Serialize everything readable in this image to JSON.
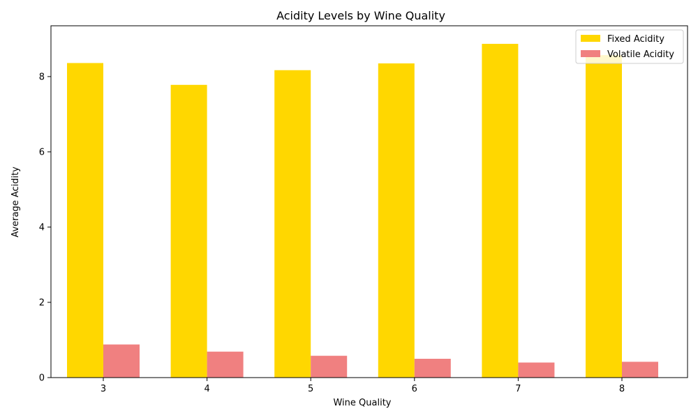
{
  "chart_data": {
    "type": "bar",
    "title": "Acidity Levels by Wine Quality",
    "xlabel": "Wine Quality",
    "ylabel": "Average Acidity",
    "categories": [
      "3",
      "4",
      "5",
      "6",
      "7",
      "8"
    ],
    "series": [
      {
        "name": "Fixed Acidity",
        "color": "#FFD700",
        "values": [
          8.36,
          7.78,
          8.17,
          8.35,
          8.87,
          8.57
        ]
      },
      {
        "name": "Volatile Acidity",
        "color": "#F08080",
        "values": [
          0.88,
          0.69,
          0.58,
          0.5,
          0.4,
          0.42
        ]
      }
    ],
    "ylim": [
      0,
      9.35
    ],
    "yticks": [
      "0",
      "2",
      "4",
      "6",
      "8"
    ],
    "legend": "top-right",
    "grid": false
  }
}
